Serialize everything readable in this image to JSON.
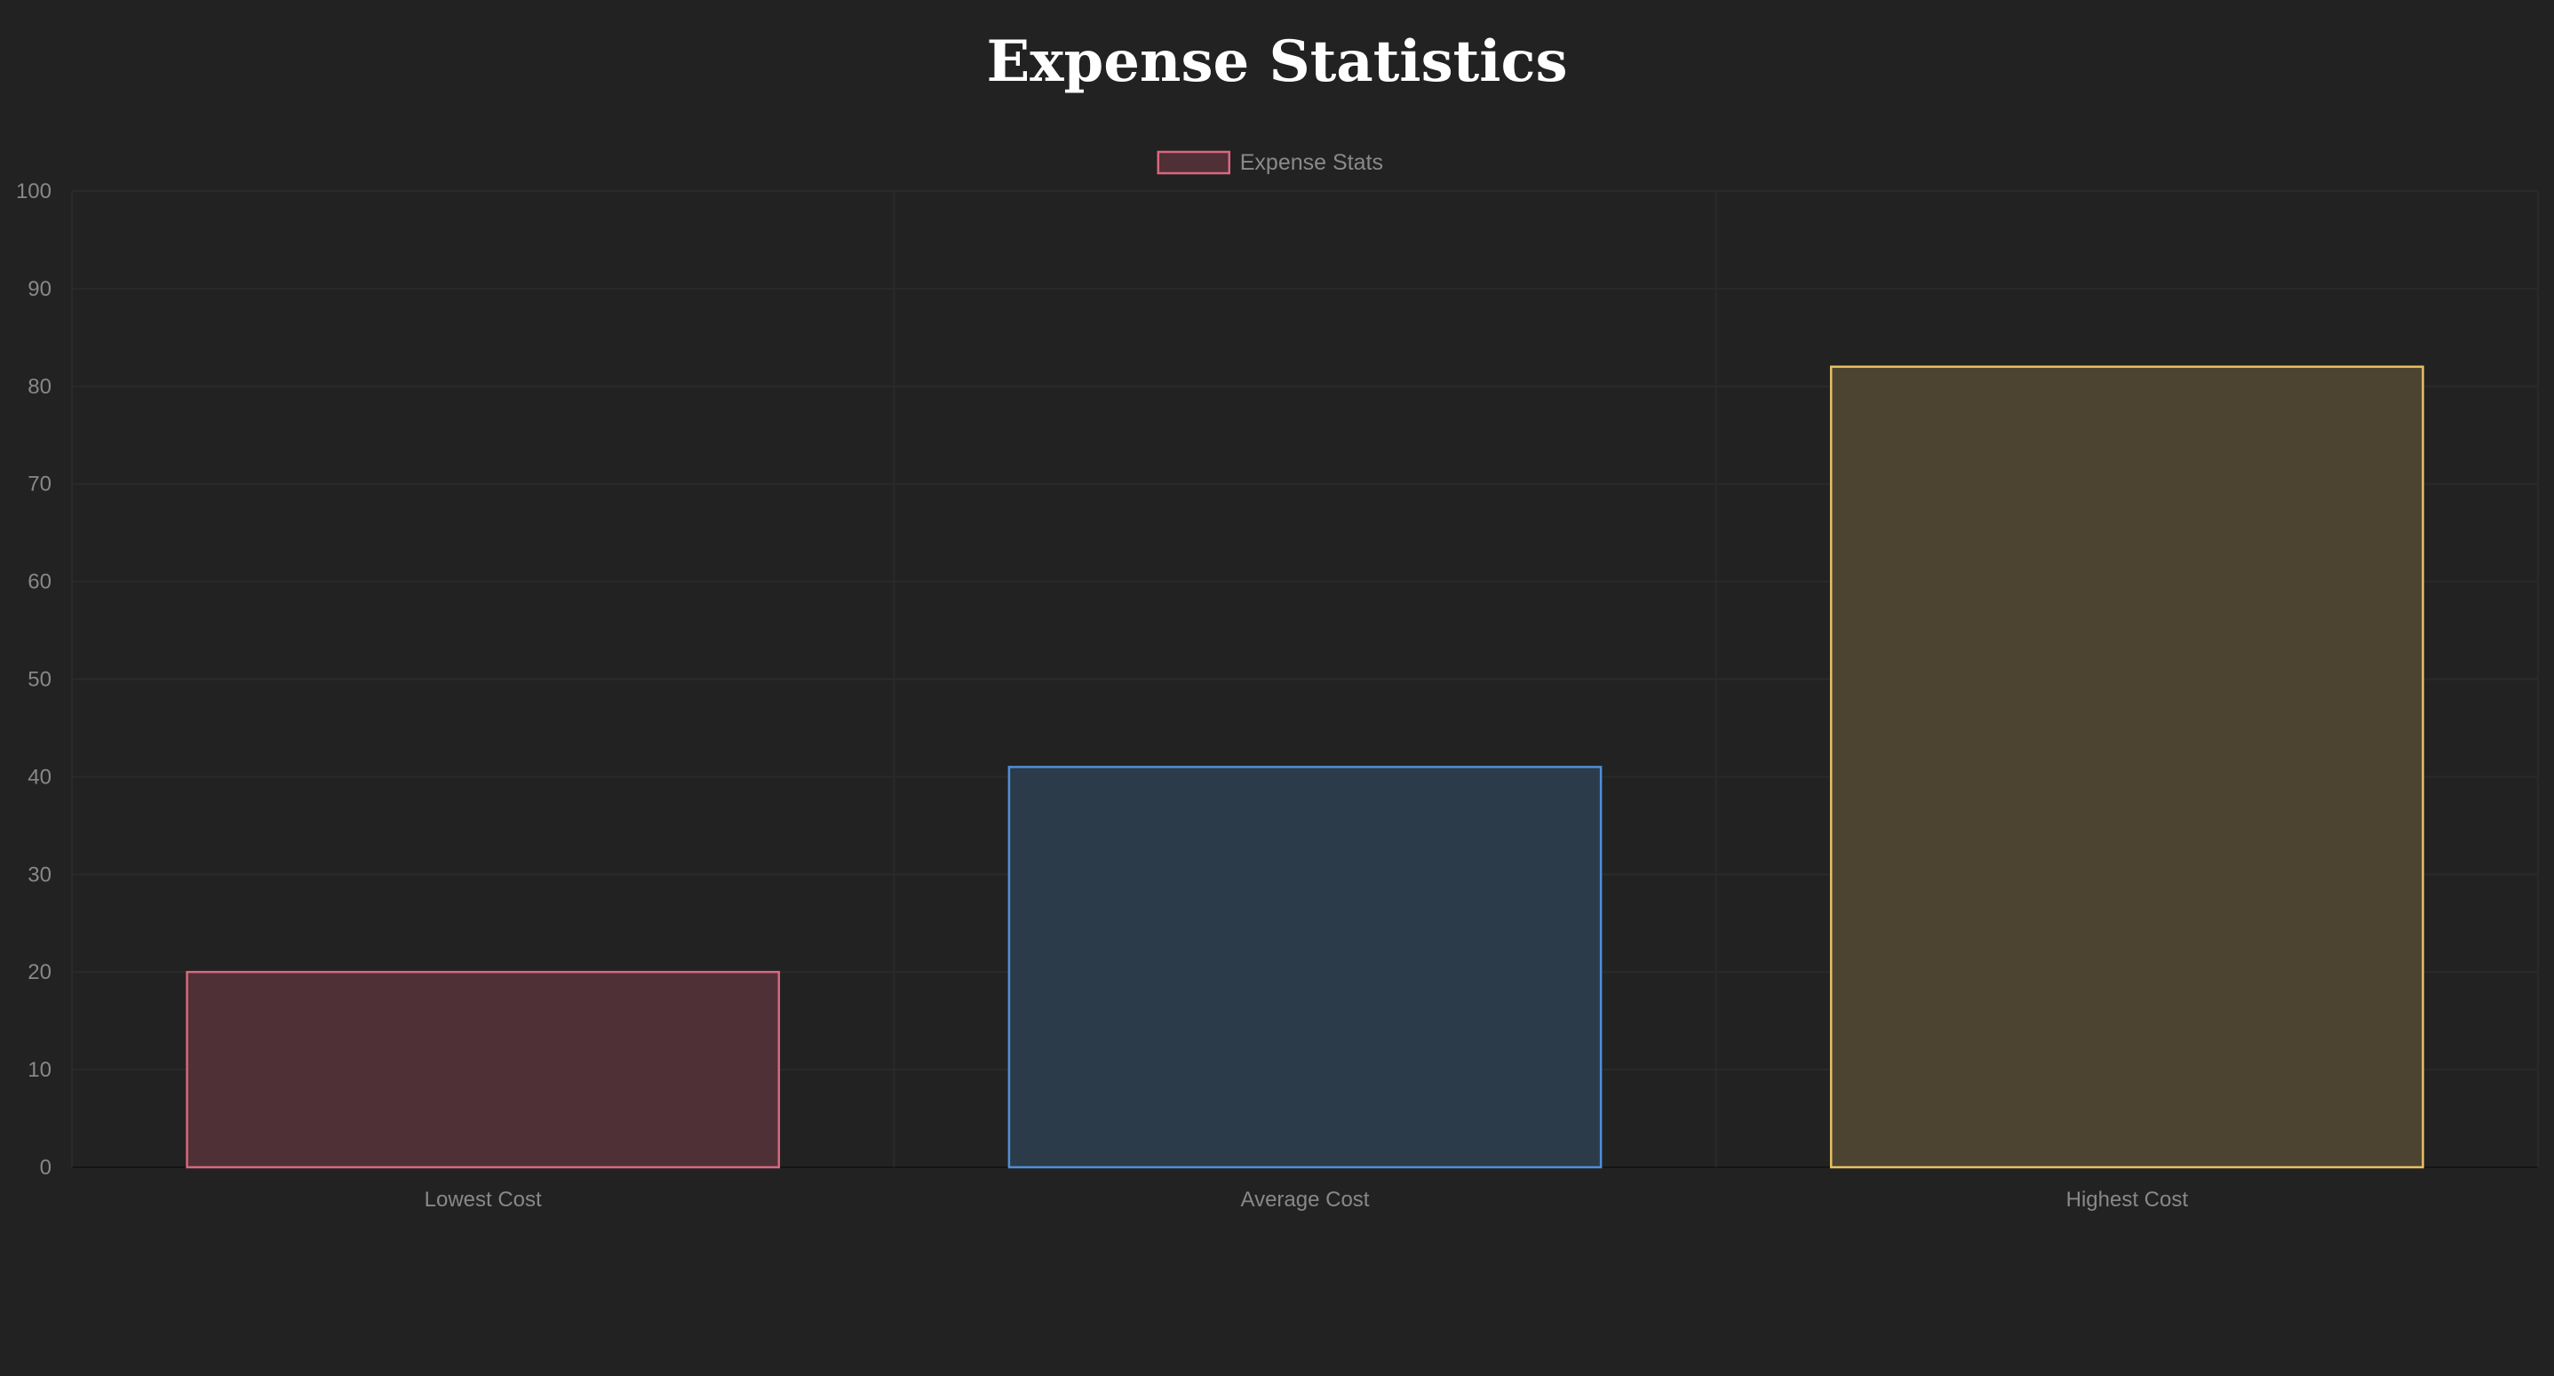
{
  "chart_data": {
    "type": "bar",
    "title": "Expense Statistics",
    "categories": [
      "Lowest Cost",
      "Average Cost",
      "Highest Cost"
    ],
    "series": [
      {
        "name": "Expense Stats",
        "values": [
          20,
          41,
          82
        ]
      }
    ],
    "ylim": [
      0,
      100
    ],
    "yticks": [
      0,
      10,
      20,
      30,
      40,
      50,
      60,
      70,
      80,
      90,
      100
    ],
    "grid": true,
    "legend": "top-center",
    "colors": {
      "fills": [
        "#4f3036",
        "#2b3b4a",
        "#4c4430"
      ],
      "borders": [
        "#d9677e",
        "#4f8fd6",
        "#e8c065"
      ],
      "background": "#222222",
      "grid": "#2a2a2a",
      "title": "#ffffff"
    }
  }
}
